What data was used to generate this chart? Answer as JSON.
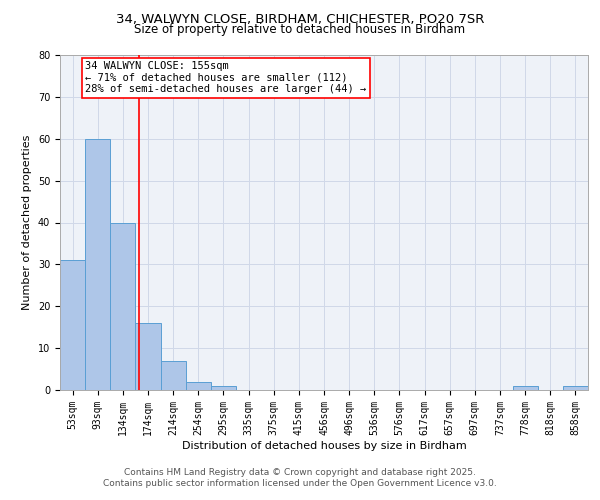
{
  "title_line1": "34, WALWYN CLOSE, BIRDHAM, CHICHESTER, PO20 7SR",
  "title_line2": "Size of property relative to detached houses in Birdham",
  "xlabel": "Distribution of detached houses by size in Birdham",
  "ylabel": "Number of detached properties",
  "categories": [
    "53sqm",
    "93sqm",
    "134sqm",
    "174sqm",
    "214sqm",
    "254sqm",
    "295sqm",
    "335sqm",
    "375sqm",
    "415sqm",
    "456sqm",
    "496sqm",
    "536sqm",
    "576sqm",
    "617sqm",
    "657sqm",
    "697sqm",
    "737sqm",
    "778sqm",
    "818sqm",
    "858sqm"
  ],
  "values": [
    31,
    60,
    40,
    16,
    7,
    2,
    1,
    0,
    0,
    0,
    0,
    0,
    0,
    0,
    0,
    0,
    0,
    0,
    1,
    0,
    1
  ],
  "bar_color": "#aec6e8",
  "bar_edge_color": "#5a9fd4",
  "vline_x": 2.65,
  "vline_color": "red",
  "annotation_text": "34 WALWYN CLOSE: 155sqm\n← 71% of detached houses are smaller (112)\n28% of semi-detached houses are larger (44) →",
  "annotation_box_color": "white",
  "annotation_box_edge_color": "red",
  "ylim": [
    0,
    80
  ],
  "yticks": [
    0,
    10,
    20,
    30,
    40,
    50,
    60,
    70,
    80
  ],
  "grid_color": "#d0d8e8",
  "background_color": "#eef2f8",
  "footer_line1": "Contains HM Land Registry data © Crown copyright and database right 2025.",
  "footer_line2": "Contains public sector information licensed under the Open Government Licence v3.0.",
  "title_fontsize": 9.5,
  "subtitle_fontsize": 8.5,
  "axis_label_fontsize": 8,
  "tick_fontsize": 7,
  "annotation_fontsize": 7.5,
  "footer_fontsize": 6.5
}
